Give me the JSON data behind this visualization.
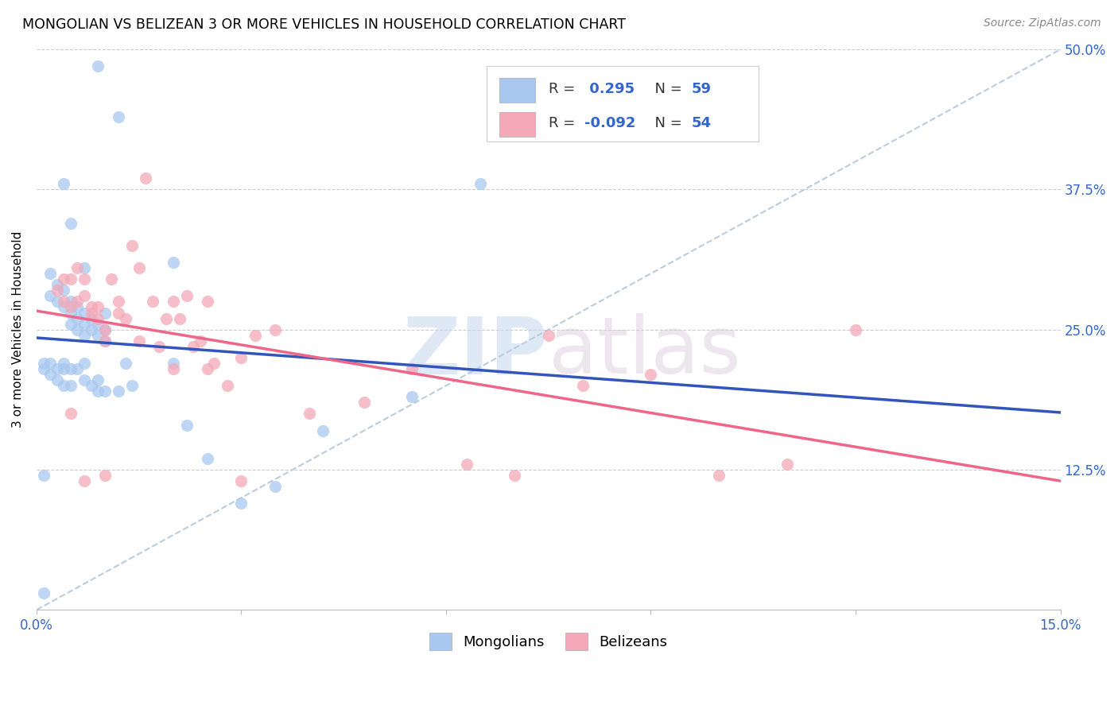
{
  "title": "MONGOLIAN VS BELIZEAN 3 OR MORE VEHICLES IN HOUSEHOLD CORRELATION CHART",
  "source": "Source: ZipAtlas.com",
  "ylabel": "3 or more Vehicles in Household",
  "xlim": [
    0.0,
    0.15
  ],
  "ylim": [
    0.0,
    0.5
  ],
  "xtick_positions": [
    0.0,
    0.03,
    0.06,
    0.09,
    0.12,
    0.15
  ],
  "xtick_labels": [
    "0.0%",
    "",
    "",
    "",
    "",
    "15.0%"
  ],
  "ytick_positions": [
    0.0,
    0.125,
    0.25,
    0.375,
    0.5
  ],
  "ytick_labels": [
    "",
    "12.5%",
    "25.0%",
    "37.5%",
    "50.0%"
  ],
  "mongolian_dot_color": "#A8C8F0",
  "belizean_dot_color": "#F4A8B8",
  "mongolian_line_color": "#3355BB",
  "belizean_line_color": "#EE6688",
  "diagonal_color": "#BBCCDD",
  "r_mongolian": 0.295,
  "n_mongolian": 59,
  "r_belizean": -0.092,
  "n_belizean": 54,
  "mongolian_scatter_x": [
    0.009,
    0.012,
    0.004,
    0.005,
    0.007,
    0.01,
    0.002,
    0.002,
    0.003,
    0.003,
    0.004,
    0.004,
    0.005,
    0.005,
    0.005,
    0.006,
    0.006,
    0.006,
    0.007,
    0.007,
    0.007,
    0.008,
    0.008,
    0.009,
    0.009,
    0.01,
    0.01,
    0.001,
    0.001,
    0.002,
    0.002,
    0.003,
    0.003,
    0.004,
    0.004,
    0.004,
    0.005,
    0.005,
    0.006,
    0.007,
    0.007,
    0.008,
    0.009,
    0.009,
    0.01,
    0.012,
    0.013,
    0.014,
    0.02,
    0.02,
    0.022,
    0.025,
    0.03,
    0.035,
    0.042,
    0.055,
    0.065,
    0.001,
    0.001
  ],
  "mongolian_scatter_y": [
    0.485,
    0.44,
    0.38,
    0.345,
    0.305,
    0.265,
    0.3,
    0.28,
    0.29,
    0.275,
    0.285,
    0.27,
    0.275,
    0.265,
    0.255,
    0.27,
    0.26,
    0.25,
    0.265,
    0.255,
    0.245,
    0.26,
    0.25,
    0.255,
    0.245,
    0.25,
    0.24,
    0.22,
    0.215,
    0.22,
    0.21,
    0.215,
    0.205,
    0.22,
    0.215,
    0.2,
    0.215,
    0.2,
    0.215,
    0.22,
    0.205,
    0.2,
    0.205,
    0.195,
    0.195,
    0.195,
    0.22,
    0.2,
    0.31,
    0.22,
    0.165,
    0.135,
    0.095,
    0.11,
    0.16,
    0.19,
    0.38,
    0.015,
    0.12
  ],
  "belizean_scatter_x": [
    0.003,
    0.004,
    0.004,
    0.005,
    0.005,
    0.006,
    0.006,
    0.007,
    0.007,
    0.008,
    0.008,
    0.009,
    0.009,
    0.01,
    0.01,
    0.011,
    0.012,
    0.012,
    0.013,
    0.014,
    0.015,
    0.015,
    0.016,
    0.017,
    0.018,
    0.019,
    0.02,
    0.02,
    0.021,
    0.022,
    0.023,
    0.024,
    0.025,
    0.025,
    0.026,
    0.028,
    0.03,
    0.032,
    0.035,
    0.04,
    0.048,
    0.055,
    0.063,
    0.07,
    0.075,
    0.08,
    0.09,
    0.1,
    0.11,
    0.12,
    0.005,
    0.007,
    0.01,
    0.03
  ],
  "belizean_scatter_y": [
    0.285,
    0.295,
    0.275,
    0.295,
    0.27,
    0.305,
    0.275,
    0.295,
    0.28,
    0.27,
    0.265,
    0.27,
    0.26,
    0.25,
    0.24,
    0.295,
    0.275,
    0.265,
    0.26,
    0.325,
    0.305,
    0.24,
    0.385,
    0.275,
    0.235,
    0.26,
    0.275,
    0.215,
    0.26,
    0.28,
    0.235,
    0.24,
    0.275,
    0.215,
    0.22,
    0.2,
    0.225,
    0.245,
    0.25,
    0.175,
    0.185,
    0.215,
    0.13,
    0.12,
    0.245,
    0.2,
    0.21,
    0.12,
    0.13,
    0.25,
    0.175,
    0.115,
    0.12,
    0.115
  ],
  "watermark_zip": "ZIP",
  "watermark_atlas": "atlas",
  "legend_mongolian_label": "Mongolians",
  "legend_belizean_label": "Belizeans"
}
